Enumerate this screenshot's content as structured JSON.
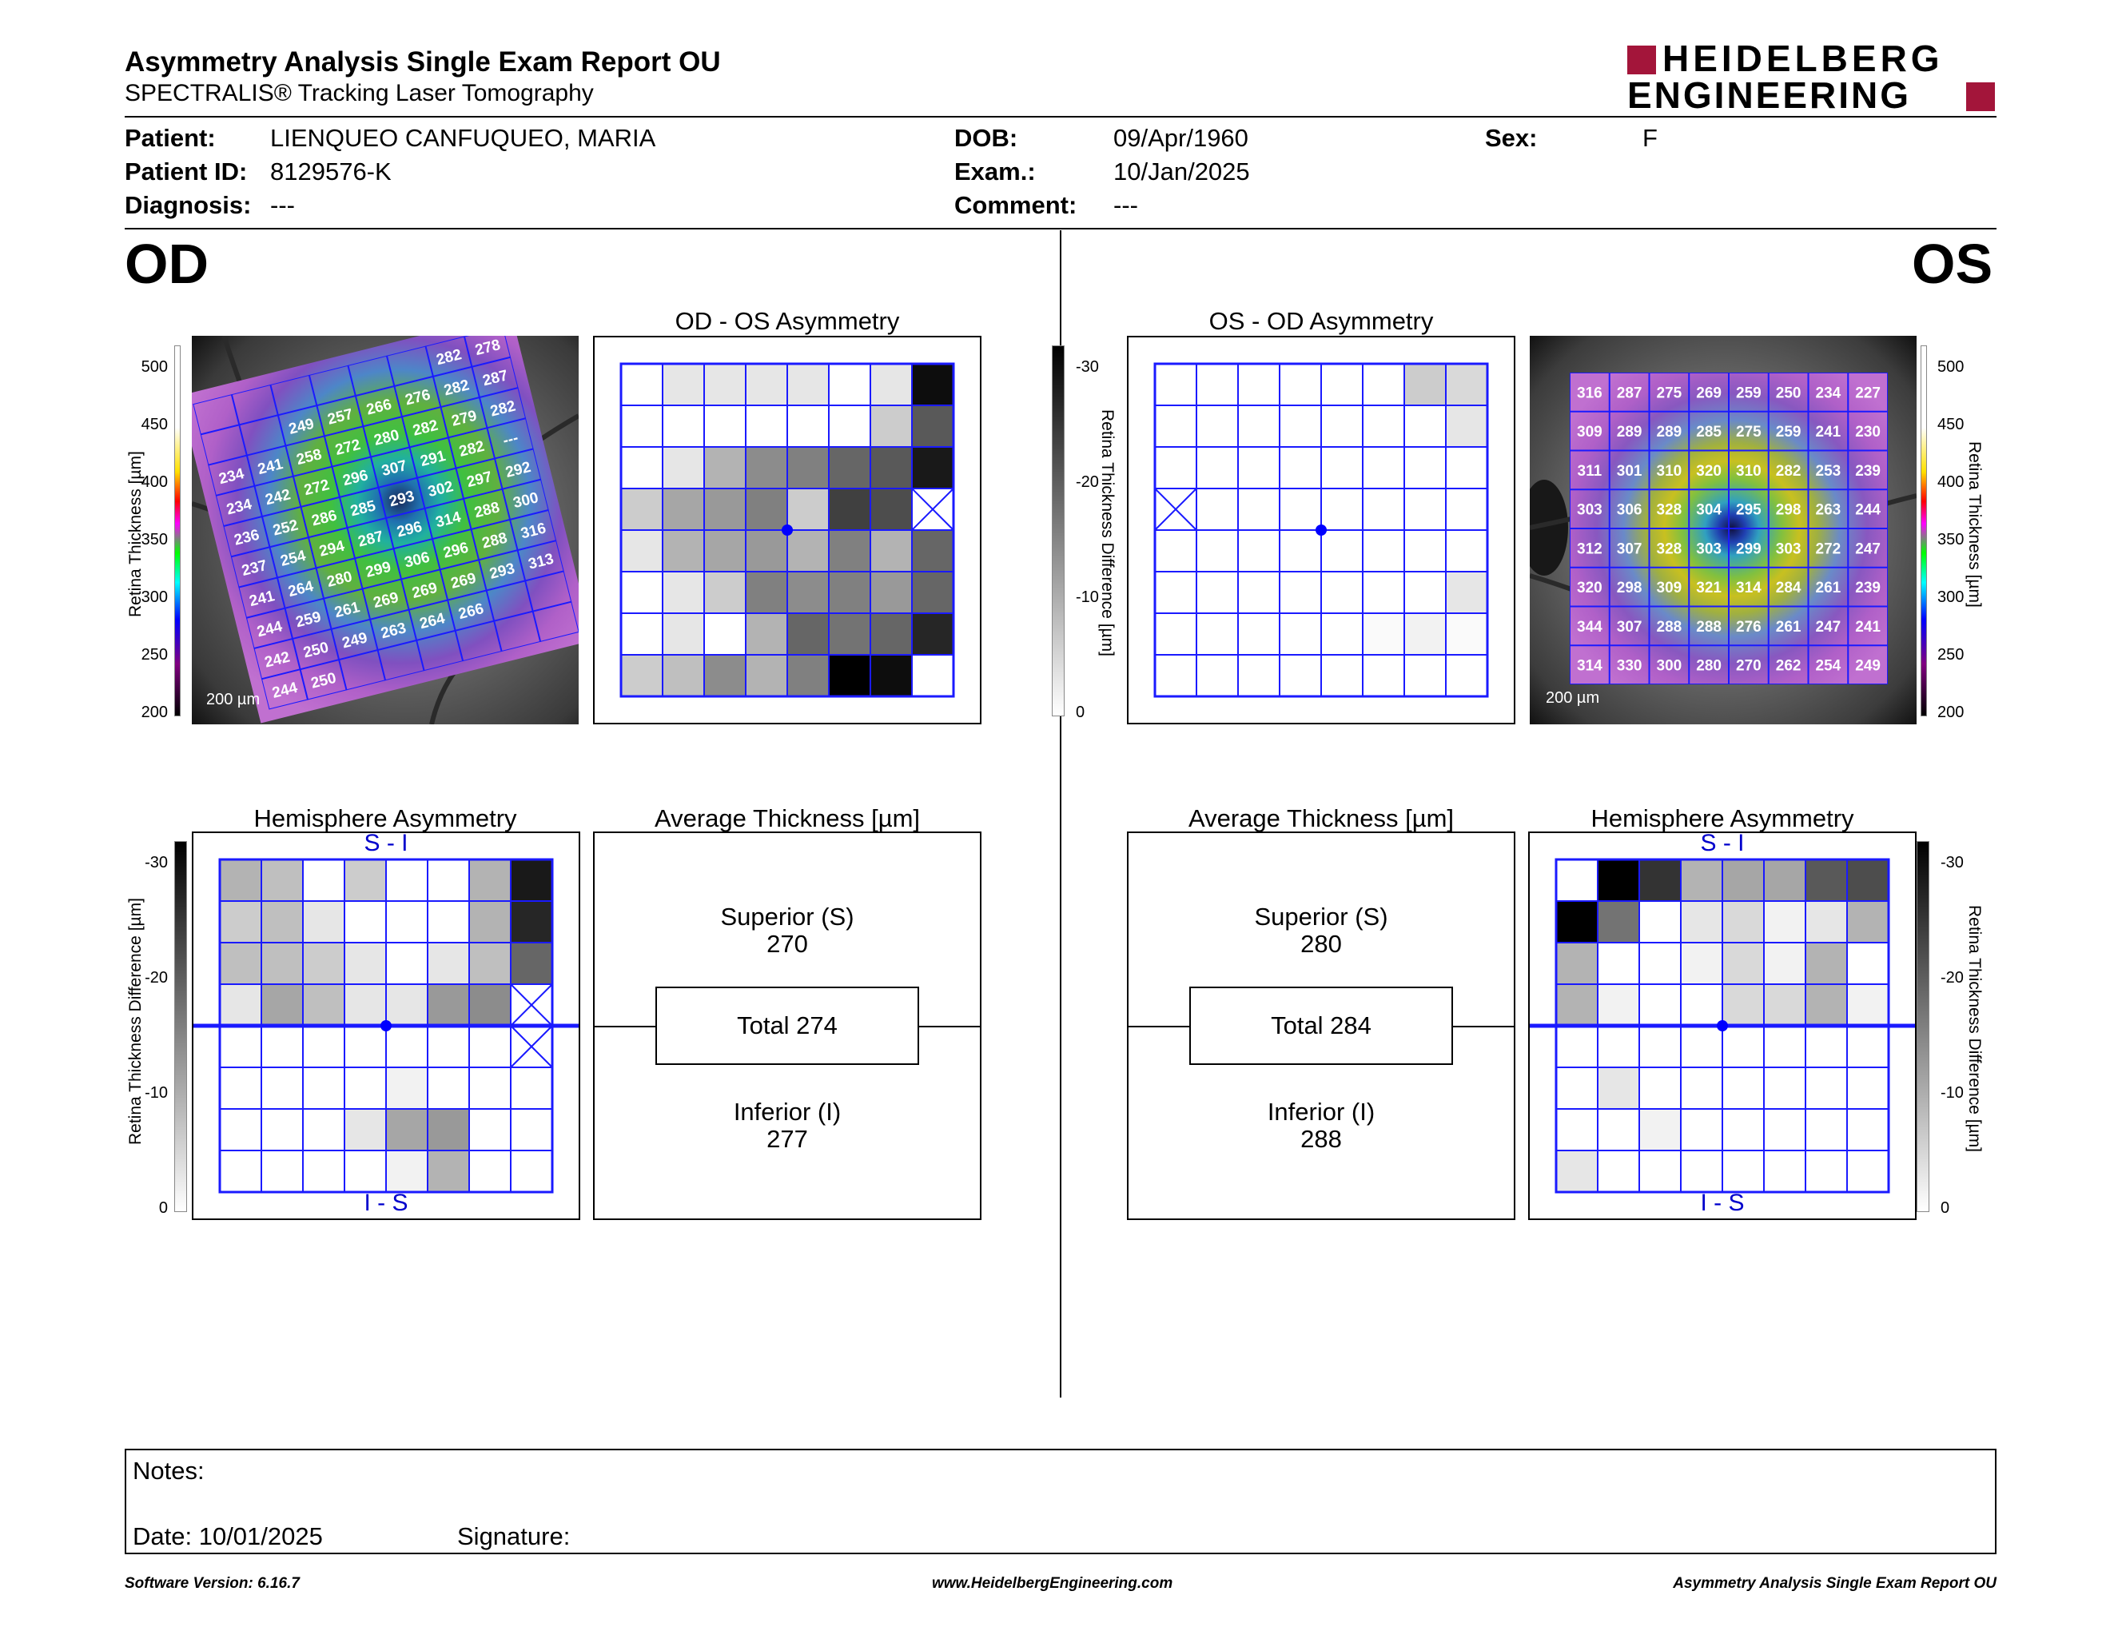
{
  "header": {
    "title": "Asymmetry Analysis Single Exam Report OU",
    "subtitle": "SPECTRALIS® Tracking Laser Tomography",
    "logo_line1": "HEIDELBERG",
    "logo_line2": "ENGINEERING"
  },
  "patient": {
    "patient_label": "Patient:",
    "patient_value": "LIENQUEO CANFUQUEO, MARIA",
    "id_label": "Patient ID:",
    "id_value": "8129576-K",
    "diagnosis_label": "Diagnosis:",
    "diagnosis_value": "---",
    "dob_label": "DOB:",
    "dob_value": "09/Apr/1960",
    "exam_label": "Exam.:",
    "exam_value": "10/Jan/2025",
    "comment_label": "Comment:",
    "comment_value": "---",
    "sex_label": "Sex:",
    "sex_value": "F"
  },
  "eyes": {
    "od": "OD",
    "os": "OS"
  },
  "od": {
    "thickness_scale_label": "Retina  Thickness [µm]",
    "thickness_ticks": [
      "500",
      "450",
      "400",
      "350",
      "300",
      "250",
      "200"
    ],
    "scalebar": "200 µm",
    "thickness_grid": [
      [
        "",
        "",
        "",
        "",
        "",
        "",
        "282",
        "278"
      ],
      [
        "",
        "",
        "249",
        "257",
        "266",
        "276",
        "282",
        "287"
      ],
      [
        "234",
        "241",
        "258",
        "272",
        "280",
        "282",
        "279",
        "282"
      ],
      [
        "234",
        "242",
        "272",
        "296",
        "307",
        "291",
        "282",
        "---"
      ],
      [
        "236",
        "252",
        "286",
        "285",
        "293",
        "302",
        "297",
        "292"
      ],
      [
        "237",
        "254",
        "294",
        "287",
        "296",
        "314",
        "288",
        "300"
      ],
      [
        "241",
        "264",
        "280",
        "299",
        "306",
        "296",
        "288",
        "316"
      ],
      [
        "244",
        "259",
        "261",
        "269",
        "269",
        "269",
        "293",
        "313"
      ],
      [
        "242",
        "250",
        "249",
        "263",
        "264",
        "266",
        "",
        ""
      ],
      [
        "244",
        "250",
        "",
        "",
        "",
        "",
        "",
        ""
      ]
    ],
    "asym_title": "OD - OS Asymmetry",
    "asym_grid": [
      [
        0.0,
        0.1,
        0.1,
        0.1,
        0.1,
        0.0,
        0.1,
        0.95
      ],
      [
        0.0,
        0.0,
        0.0,
        0.0,
        0.0,
        0.0,
        0.2,
        0.65
      ],
      [
        0.0,
        0.1,
        0.3,
        0.45,
        0.5,
        0.6,
        0.65,
        0.9
      ],
      [
        0.2,
        0.35,
        0.4,
        0.5,
        0.2,
        0.75,
        0.7,
        -1
      ],
      [
        0.1,
        0.3,
        0.35,
        0.4,
        0.3,
        0.5,
        0.3,
        0.6
      ],
      [
        0.0,
        0.1,
        0.2,
        0.5,
        0.45,
        0.5,
        0.4,
        0.6
      ],
      [
        0.0,
        0.1,
        0.0,
        0.3,
        0.6,
        0.55,
        0.6,
        0.85
      ],
      [
        0.2,
        0.25,
        0.45,
        0.3,
        0.5,
        1.0,
        0.95,
        0.0
      ]
    ],
    "hemi_title": "Hemisphere Asymmetry",
    "hemi_top": "S - I",
    "hemi_bottom": "I - S",
    "hemi_grid": [
      [
        0.3,
        0.25,
        0.0,
        0.2,
        0.0,
        0.0,
        0.3,
        0.9
      ],
      [
        0.2,
        0.25,
        0.1,
        0.0,
        0.0,
        0.0,
        0.3,
        0.85
      ],
      [
        0.25,
        0.25,
        0.2,
        0.1,
        0.0,
        0.1,
        0.25,
        0.6
      ],
      [
        0.1,
        0.35,
        0.25,
        0.1,
        0.1,
        0.4,
        0.45,
        -1
      ],
      [
        0.0,
        0.0,
        0.0,
        0.0,
        0.0,
        0.0,
        0.0,
        -1
      ],
      [
        0.0,
        0.0,
        0.0,
        0.0,
        0.05,
        0.0,
        0.0,
        0.0
      ],
      [
        0.0,
        0.0,
        0.0,
        0.1,
        0.35,
        0.4,
        0.0,
        0.0
      ],
      [
        0.0,
        0.0,
        0.0,
        0.0,
        0.05,
        0.3,
        0.0,
        0.0
      ]
    ],
    "avg_title": "Average Thickness [µm]",
    "superior_label": "Superior (S)",
    "superior_value": "270",
    "total_label": "Total 274",
    "inferior_label": "Inferior (I)",
    "inferior_value": "277"
  },
  "os": {
    "thickness_scale_label": "Retina  Thickness [µm]",
    "thickness_ticks": [
      "500",
      "450",
      "400",
      "350",
      "300",
      "250",
      "200"
    ],
    "scalebar": "200 µm",
    "thickness_grid": [
      [
        "316",
        "287",
        "275",
        "269",
        "259",
        "250",
        "234",
        "227"
      ],
      [
        "309",
        "289",
        "289",
        "285",
        "275",
        "259",
        "241",
        "230"
      ],
      [
        "311",
        "301",
        "310",
        "320",
        "310",
        "282",
        "253",
        "239"
      ],
      [
        "303",
        "306",
        "328",
        "304",
        "295",
        "298",
        "263",
        "244"
      ],
      [
        "312",
        "307",
        "328",
        "303",
        "299",
        "303",
        "272",
        "247"
      ],
      [
        "320",
        "298",
        "309",
        "321",
        "314",
        "284",
        "261",
        "239"
      ],
      [
        "344",
        "307",
        "288",
        "288",
        "276",
        "261",
        "247",
        "241"
      ],
      [
        "314",
        "330",
        "300",
        "280",
        "270",
        "262",
        "254",
        "249"
      ]
    ],
    "asym_title": "OS - OD Asymmetry",
    "asym_grid": [
      [
        0.0,
        0.0,
        0.0,
        0.0,
        0.0,
        0.0,
        0.2,
        0.15
      ],
      [
        0.0,
        0.0,
        0.0,
        0.0,
        0.0,
        0.0,
        0.0,
        0.1
      ],
      [
        0.0,
        0.0,
        0.0,
        0.0,
        0.0,
        0.0,
        0.0,
        0.0
      ],
      [
        -1,
        0.0,
        0.0,
        0.0,
        0.0,
        0.0,
        0.0,
        0.0
      ],
      [
        0.0,
        0.0,
        0.0,
        0.0,
        0.0,
        0.0,
        0.0,
        0.0
      ],
      [
        0.0,
        0.0,
        0.0,
        0.0,
        0.0,
        0.0,
        0.0,
        0.1
      ],
      [
        0.0,
        0.0,
        0.0,
        0.0,
        0.0,
        0.02,
        0.05,
        0.02
      ],
      [
        0.0,
        0.0,
        0.0,
        0.0,
        0.0,
        0.0,
        0.0,
        0.0
      ]
    ],
    "hemi_title": "Hemisphere Asymmetry",
    "hemi_top": "S - I",
    "hemi_bottom": "I - S",
    "hemi_grid": [
      [
        0.0,
        1.0,
        0.8,
        0.3,
        0.35,
        0.35,
        0.65,
        0.7
      ],
      [
        1.0,
        0.55,
        0.0,
        0.1,
        0.15,
        0.05,
        0.1,
        0.3
      ],
      [
        0.3,
        0.0,
        0.0,
        0.05,
        0.15,
        0.05,
        0.3,
        0.0
      ],
      [
        0.3,
        0.05,
        0.0,
        0.0,
        0.15,
        0.15,
        0.3,
        0.05
      ],
      [
        0.0,
        0.0,
        0.0,
        0.0,
        0.0,
        0.0,
        0.0,
        0.0
      ],
      [
        0.0,
        0.1,
        0.0,
        0.0,
        0.0,
        0.0,
        0.0,
        0.0
      ],
      [
        0.0,
        0.0,
        0.05,
        0.0,
        0.0,
        0.0,
        0.0,
        0.0
      ],
      [
        0.1,
        0.0,
        0.0,
        0.0,
        0.0,
        0.0,
        0.0,
        0.0
      ]
    ],
    "avg_title": "Average Thickness [µm]",
    "superior_label": "Superior (S)",
    "superior_value": "280",
    "total_label": "Total 284",
    "inferior_label": "Inferior (I)",
    "inferior_value": "288"
  },
  "diff_scale": {
    "label": "Retina Thickness Difference [µm]",
    "ticks": [
      "-30",
      "-20",
      "-10",
      "0"
    ]
  },
  "notes": {
    "notes_label": "Notes:",
    "date_label": "Date: 10/01/2025",
    "signature_label": "Signature:"
  },
  "footer": {
    "software": "Software Version: 6.16.7",
    "website": "www.HeidelbergEngineering.com",
    "report": "Asymmetry Analysis Single Exam Report OU"
  },
  "colors": {
    "grid_line": "#1a1aff",
    "logo_red": "#a3153a",
    "dot": "#0000ff"
  }
}
